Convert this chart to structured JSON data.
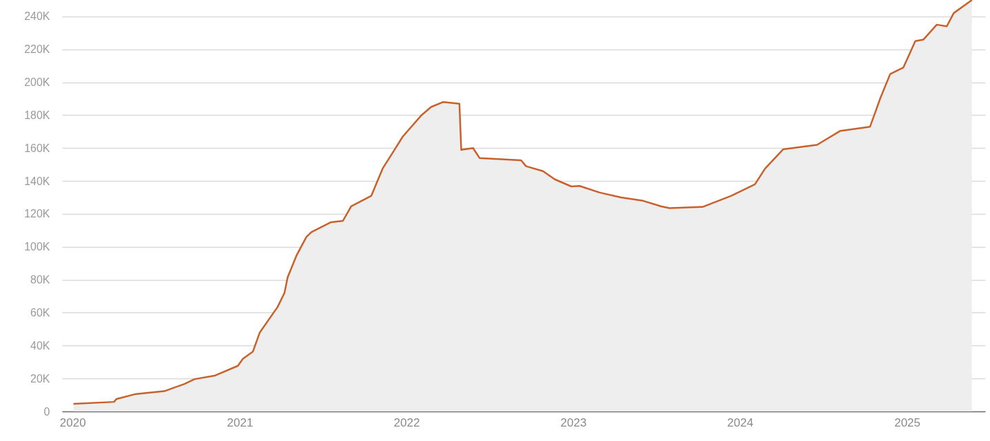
{
  "chart_data": {
    "type": "area",
    "grid": "y",
    "xlim": [
      "2019-12-09",
      "2025-06-21"
    ],
    "xticks": [
      "2020",
      "2021",
      "2022",
      "2023",
      "2024",
      "2025"
    ],
    "ylim": [
      0,
      250000
    ],
    "yticks": [
      0,
      {
        "value": 20000,
        "label": "20K"
      },
      {
        "value": 40000,
        "label": "40K"
      },
      {
        "value": 60000,
        "label": "60K"
      },
      {
        "value": 80000,
        "label": "80K"
      },
      {
        "value": 100000,
        "label": "100K"
      },
      {
        "value": 120000,
        "label": "120K"
      },
      {
        "value": 140000,
        "label": "140K"
      },
      {
        "value": 160000,
        "label": "160K"
      },
      {
        "value": 180000,
        "label": "180K"
      },
      {
        "value": 200000,
        "label": "200K"
      },
      {
        "value": 220000,
        "label": "220K"
      },
      {
        "value": 240000,
        "label": "240K"
      }
    ],
    "x": [
      "2020-01-03",
      "2020-04-01",
      "2020-04-06",
      "2020-05-19",
      "2020-07-20",
      "2020-09-02",
      "2020-09-24",
      "2020-11-07",
      "2020-12-28",
      "2021-01-08",
      "2021-01-30",
      "2021-02-14",
      "2021-03-25",
      "2021-04-09",
      "2021-04-16",
      "2021-05-05",
      "2021-05-27",
      "2021-06-07",
      "2021-07-20",
      "2021-08-15",
      "2021-09-02",
      "2021-10-16",
      "2021-11-10",
      "2021-12-06",
      "2021-12-24",
      "2022-02-03",
      "2022-02-24",
      "2022-03-22",
      "2022-04-27",
      "2022-05-01",
      "2022-05-27",
      "2022-06-10",
      "2022-09-09",
      "2022-09-20",
      "2022-10-27",
      "2022-11-22",
      "2022-12-28",
      "2023-01-15",
      "2023-02-28",
      "2023-04-16",
      "2023-06-03",
      "2023-07-13",
      "2023-07-31",
      "2023-10-12",
      "2023-12-13",
      "2024-02-03",
      "2024-02-25",
      "2024-04-05",
      "2024-06-18",
      "2024-08-08",
      "2024-10-12",
      "2024-11-03",
      "2024-11-25",
      "2024-12-24",
      "2025-01-19",
      "2025-02-06",
      "2025-03-07",
      "2025-03-29",
      "2025-04-13",
      "2025-05-23"
    ],
    "series": [
      {
        "color": "#c8602a",
        "values": [
          4600,
          5800,
          7500,
          10600,
          12300,
          16700,
          19600,
          21700,
          27700,
          32000,
          36400,
          48000,
          63500,
          72000,
          81500,
          94500,
          106000,
          109000,
          115000,
          115800,
          124600,
          131000,
          147600,
          159000,
          167000,
          180000,
          185000,
          188000,
          187000,
          159000,
          160000,
          154000,
          152600,
          149000,
          146000,
          141000,
          136700,
          137000,
          133000,
          130000,
          128000,
          124600,
          123500,
          124300,
          131000,
          138000,
          147500,
          159300,
          162000,
          170500,
          173000,
          190000,
          205000,
          209000,
          225000,
          226000,
          235000,
          234000,
          242000,
          250000
        ]
      }
    ]
  }
}
